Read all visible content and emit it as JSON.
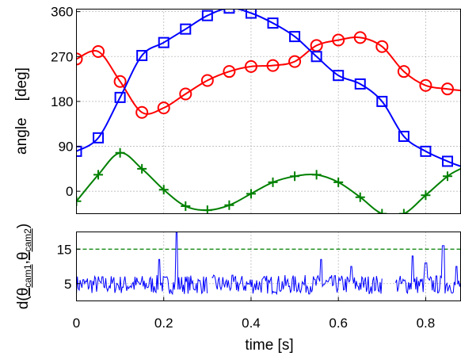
{
  "chart_data": [
    {
      "type": "line",
      "ylabel": "angle    [deg]",
      "xlim": [
        0,
        0.88
      ],
      "ylim": [
        -45,
        365
      ],
      "yticks": [
        0,
        90,
        180,
        270,
        360
      ],
      "ytick_labels": [
        "0",
        "90",
        "180",
        "270",
        "360"
      ],
      "grid": true,
      "colors": {
        "red": "#ff0000",
        "blue": "#0000ff",
        "green": "#008000"
      },
      "series": [
        {
          "color": "#ff0000",
          "marker": "circle",
          "x": [
            0.0,
            0.05,
            0.1,
            0.15,
            0.2,
            0.25,
            0.3,
            0.35,
            0.4,
            0.45,
            0.5,
            0.55,
            0.6,
            0.65,
            0.7,
            0.75,
            0.8,
            0.85,
            0.88
          ],
          "y": [
            265,
            280,
            220,
            158,
            167,
            195,
            222,
            240,
            250,
            252,
            260,
            292,
            303,
            308,
            290,
            240,
            212,
            205,
            202
          ]
        },
        {
          "color": "#0000ff",
          "marker": "square",
          "x": [
            0.0,
            0.05,
            0.1,
            0.15,
            0.2,
            0.25,
            0.3,
            0.35,
            0.4,
            0.45,
            0.5,
            0.55,
            0.6,
            0.65,
            0.7,
            0.75,
            0.8,
            0.85,
            0.88
          ],
          "y": [
            80,
            107,
            188,
            272,
            298,
            325,
            352,
            367,
            357,
            337,
            310,
            270,
            232,
            215,
            180,
            110,
            80,
            60,
            50
          ]
        },
        {
          "color": "#008000",
          "marker": "plus",
          "x": [
            0.0,
            0.05,
            0.1,
            0.15,
            0.2,
            0.25,
            0.3,
            0.35,
            0.4,
            0.45,
            0.5,
            0.55,
            0.6,
            0.65,
            0.7,
            0.75,
            0.8,
            0.85,
            0.88
          ],
          "y": [
            -20,
            33,
            77,
            45,
            3,
            -30,
            -38,
            -28,
            -5,
            18,
            30,
            33,
            18,
            -12,
            -45,
            -45,
            -8,
            30,
            45
          ]
        }
      ]
    },
    {
      "type": "line",
      "ylabel": "d(θcam1,θcam2)",
      "xlabel": "time [s]",
      "xlim": [
        0,
        0.88
      ],
      "ylim": [
        0,
        20
      ],
      "yticks": [
        5,
        15
      ],
      "ytick_labels": [
        "5",
        "15"
      ],
      "xticks": [
        0,
        0.2,
        0.4,
        0.6,
        0.8
      ],
      "xtick_labels": [
        "0",
        "0.2",
        "0.4",
        "0.6",
        "0.8"
      ],
      "threshold": 15,
      "grid": true,
      "series": [
        {
          "color": "#0000ff",
          "peaks": [
            [
              0.19,
              12
            ],
            [
              0.23,
              21
            ],
            [
              0.56,
              12
            ],
            [
              0.63,
              10
            ],
            [
              0.77,
              13
            ],
            [
              0.8,
              11
            ],
            [
              0.84,
              16
            ],
            [
              0.87,
              10
            ]
          ],
          "gaps": [
            [
              0.3,
              0.31
            ],
            [
              0.7,
              0.73
            ]
          ]
        }
      ]
    }
  ]
}
